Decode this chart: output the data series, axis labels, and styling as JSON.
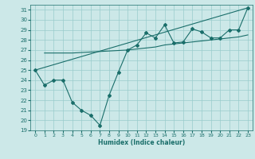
{
  "xlabel": "Humidex (Indice chaleur)",
  "xlim": [
    -0.5,
    23.5
  ],
  "ylim": [
    19,
    31.5
  ],
  "yticks": [
    19,
    20,
    21,
    22,
    23,
    24,
    25,
    26,
    27,
    28,
    29,
    30,
    31
  ],
  "xticks": [
    0,
    1,
    2,
    3,
    4,
    5,
    6,
    7,
    8,
    9,
    10,
    11,
    12,
    13,
    14,
    15,
    16,
    17,
    18,
    19,
    20,
    21,
    22,
    23
  ],
  "bg_color": "#cce8e8",
  "line_color": "#1a6e6a",
  "grid_color": "#99cccc",
  "line1_x": [
    0,
    1,
    2,
    3,
    4,
    5,
    6,
    7,
    8,
    9,
    10,
    11,
    12,
    13,
    14,
    15,
    16,
    17,
    18,
    19,
    20,
    21,
    22,
    23
  ],
  "line1_y": [
    25.0,
    23.5,
    24.0,
    24.0,
    21.8,
    21.0,
    20.5,
    19.5,
    22.5,
    24.8,
    27.0,
    27.5,
    28.7,
    28.2,
    29.5,
    27.7,
    27.8,
    29.1,
    28.8,
    28.2,
    28.2,
    29.0,
    29.0,
    31.2
  ],
  "line2_x": [
    1,
    2,
    3,
    4,
    5,
    6,
    7,
    8,
    9,
    10,
    11,
    12,
    13,
    14,
    15,
    16,
    17,
    18,
    19,
    20,
    21,
    22,
    23
  ],
  "line2_y": [
    26.7,
    26.7,
    26.7,
    26.7,
    26.75,
    26.8,
    26.85,
    26.9,
    26.95,
    27.0,
    27.1,
    27.2,
    27.3,
    27.5,
    27.6,
    27.7,
    27.8,
    27.9,
    28.0,
    28.1,
    28.2,
    28.3,
    28.5
  ],
  "line3_x": [
    0,
    23
  ],
  "line3_y": [
    25.0,
    31.2
  ]
}
